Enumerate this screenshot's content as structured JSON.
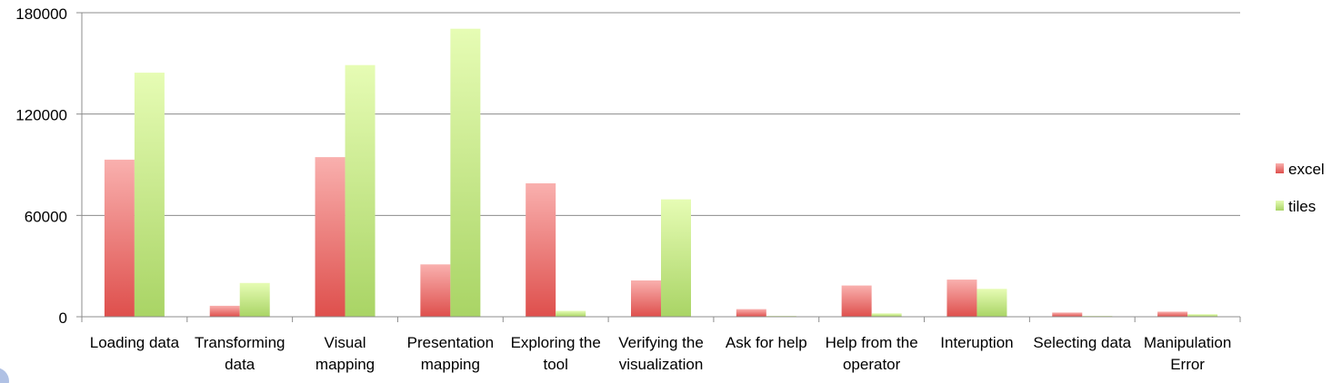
{
  "chart_data": {
    "type": "bar",
    "title": "",
    "xlabel": "",
    "ylabel": "",
    "ylim": [
      0,
      180000
    ],
    "yticks": [
      "0",
      "60000",
      "120000",
      "180000"
    ],
    "grid": true,
    "legend_position": "right",
    "categories": [
      [
        "Loading data"
      ],
      [
        "Transforming",
        "data"
      ],
      [
        "Visual",
        "mapping"
      ],
      [
        "Presentation",
        "mapping"
      ],
      [
        "Exploring the",
        "tool"
      ],
      [
        "Verifying the",
        "visualization"
      ],
      [
        "Ask for help"
      ],
      [
        "Help from the",
        "operator"
      ],
      [
        "Interuption"
      ],
      [
        "Selecting data"
      ],
      [
        "Manipulation",
        "Error"
      ]
    ],
    "series": [
      {
        "name": "excel",
        "color_top": "#f9b0ae",
        "color_bottom": "#de4f4c",
        "values": [
          93000,
          6500,
          94500,
          31000,
          79000,
          21500,
          4500,
          18500,
          22000,
          2500,
          3000
        ]
      },
      {
        "name": "tiles",
        "color_top": "#e6fcb4",
        "color_bottom": "#a9d465",
        "values": [
          144500,
          20000,
          149000,
          170500,
          3500,
          69500,
          500,
          2000,
          16500,
          500,
          1500
        ]
      }
    ]
  }
}
